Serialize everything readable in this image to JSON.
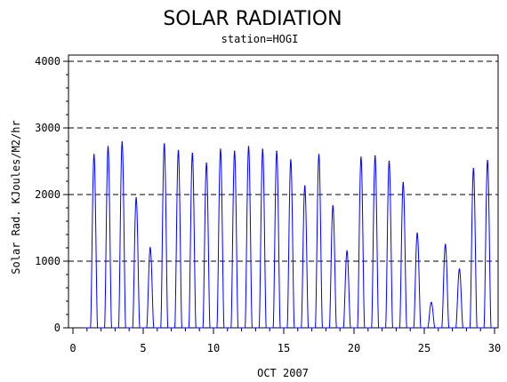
{
  "chart_data": {
    "type": "line",
    "title": "SOLAR RADIATION",
    "subtitle": "station=HOGI",
    "xlabel": "OCT 2007",
    "ylabel": "Solar Rad. KJoules/M2/hr",
    "xlim": [
      0,
      30
    ],
    "ylim": [
      0,
      4000
    ],
    "x_ticks": [
      "0",
      "5",
      "10",
      "15",
      "20",
      "25",
      "30"
    ],
    "y_ticks": [
      "0",
      "1000",
      "2000",
      "3000",
      "4000"
    ],
    "grid": "dashed horizontal at 1000, 2000, 3000, 4000",
    "line_color": "#0000ff",
    "daily_peaks": [
      {
        "day": 1,
        "peak": 2600
      },
      {
        "day": 2,
        "peak": 2720
      },
      {
        "day": 3,
        "peak": 2790
      },
      {
        "day": 4,
        "peak": 1950
      },
      {
        "day": 5,
        "peak": 1200
      },
      {
        "day": 6,
        "peak": 2760
      },
      {
        "day": 7,
        "peak": 2660
      },
      {
        "day": 8,
        "peak": 2620
      },
      {
        "day": 9,
        "peak": 2470
      },
      {
        "day": 10,
        "peak": 2680
      },
      {
        "day": 11,
        "peak": 2650
      },
      {
        "day": 12,
        "peak": 2720
      },
      {
        "day": 13,
        "peak": 2680
      },
      {
        "day": 14,
        "peak": 2650
      },
      {
        "day": 15,
        "peak": 2520
      },
      {
        "day": 16,
        "peak": 2130
      },
      {
        "day": 17,
        "peak": 2600
      },
      {
        "day": 18,
        "peak": 1830
      },
      {
        "day": 19,
        "peak": 1150
      },
      {
        "day": 20,
        "peak": 2560
      },
      {
        "day": 21,
        "peak": 2580
      },
      {
        "day": 22,
        "peak": 2500
      },
      {
        "day": 23,
        "peak": 2180
      },
      {
        "day": 24,
        "peak": 1420
      },
      {
        "day": 25,
        "peak": 380
      },
      {
        "day": 26,
        "peak": 1250
      },
      {
        "day": 27,
        "peak": 880
      },
      {
        "day": 28,
        "peak": 2390
      },
      {
        "day": 29,
        "peak": 2510
      }
    ]
  }
}
